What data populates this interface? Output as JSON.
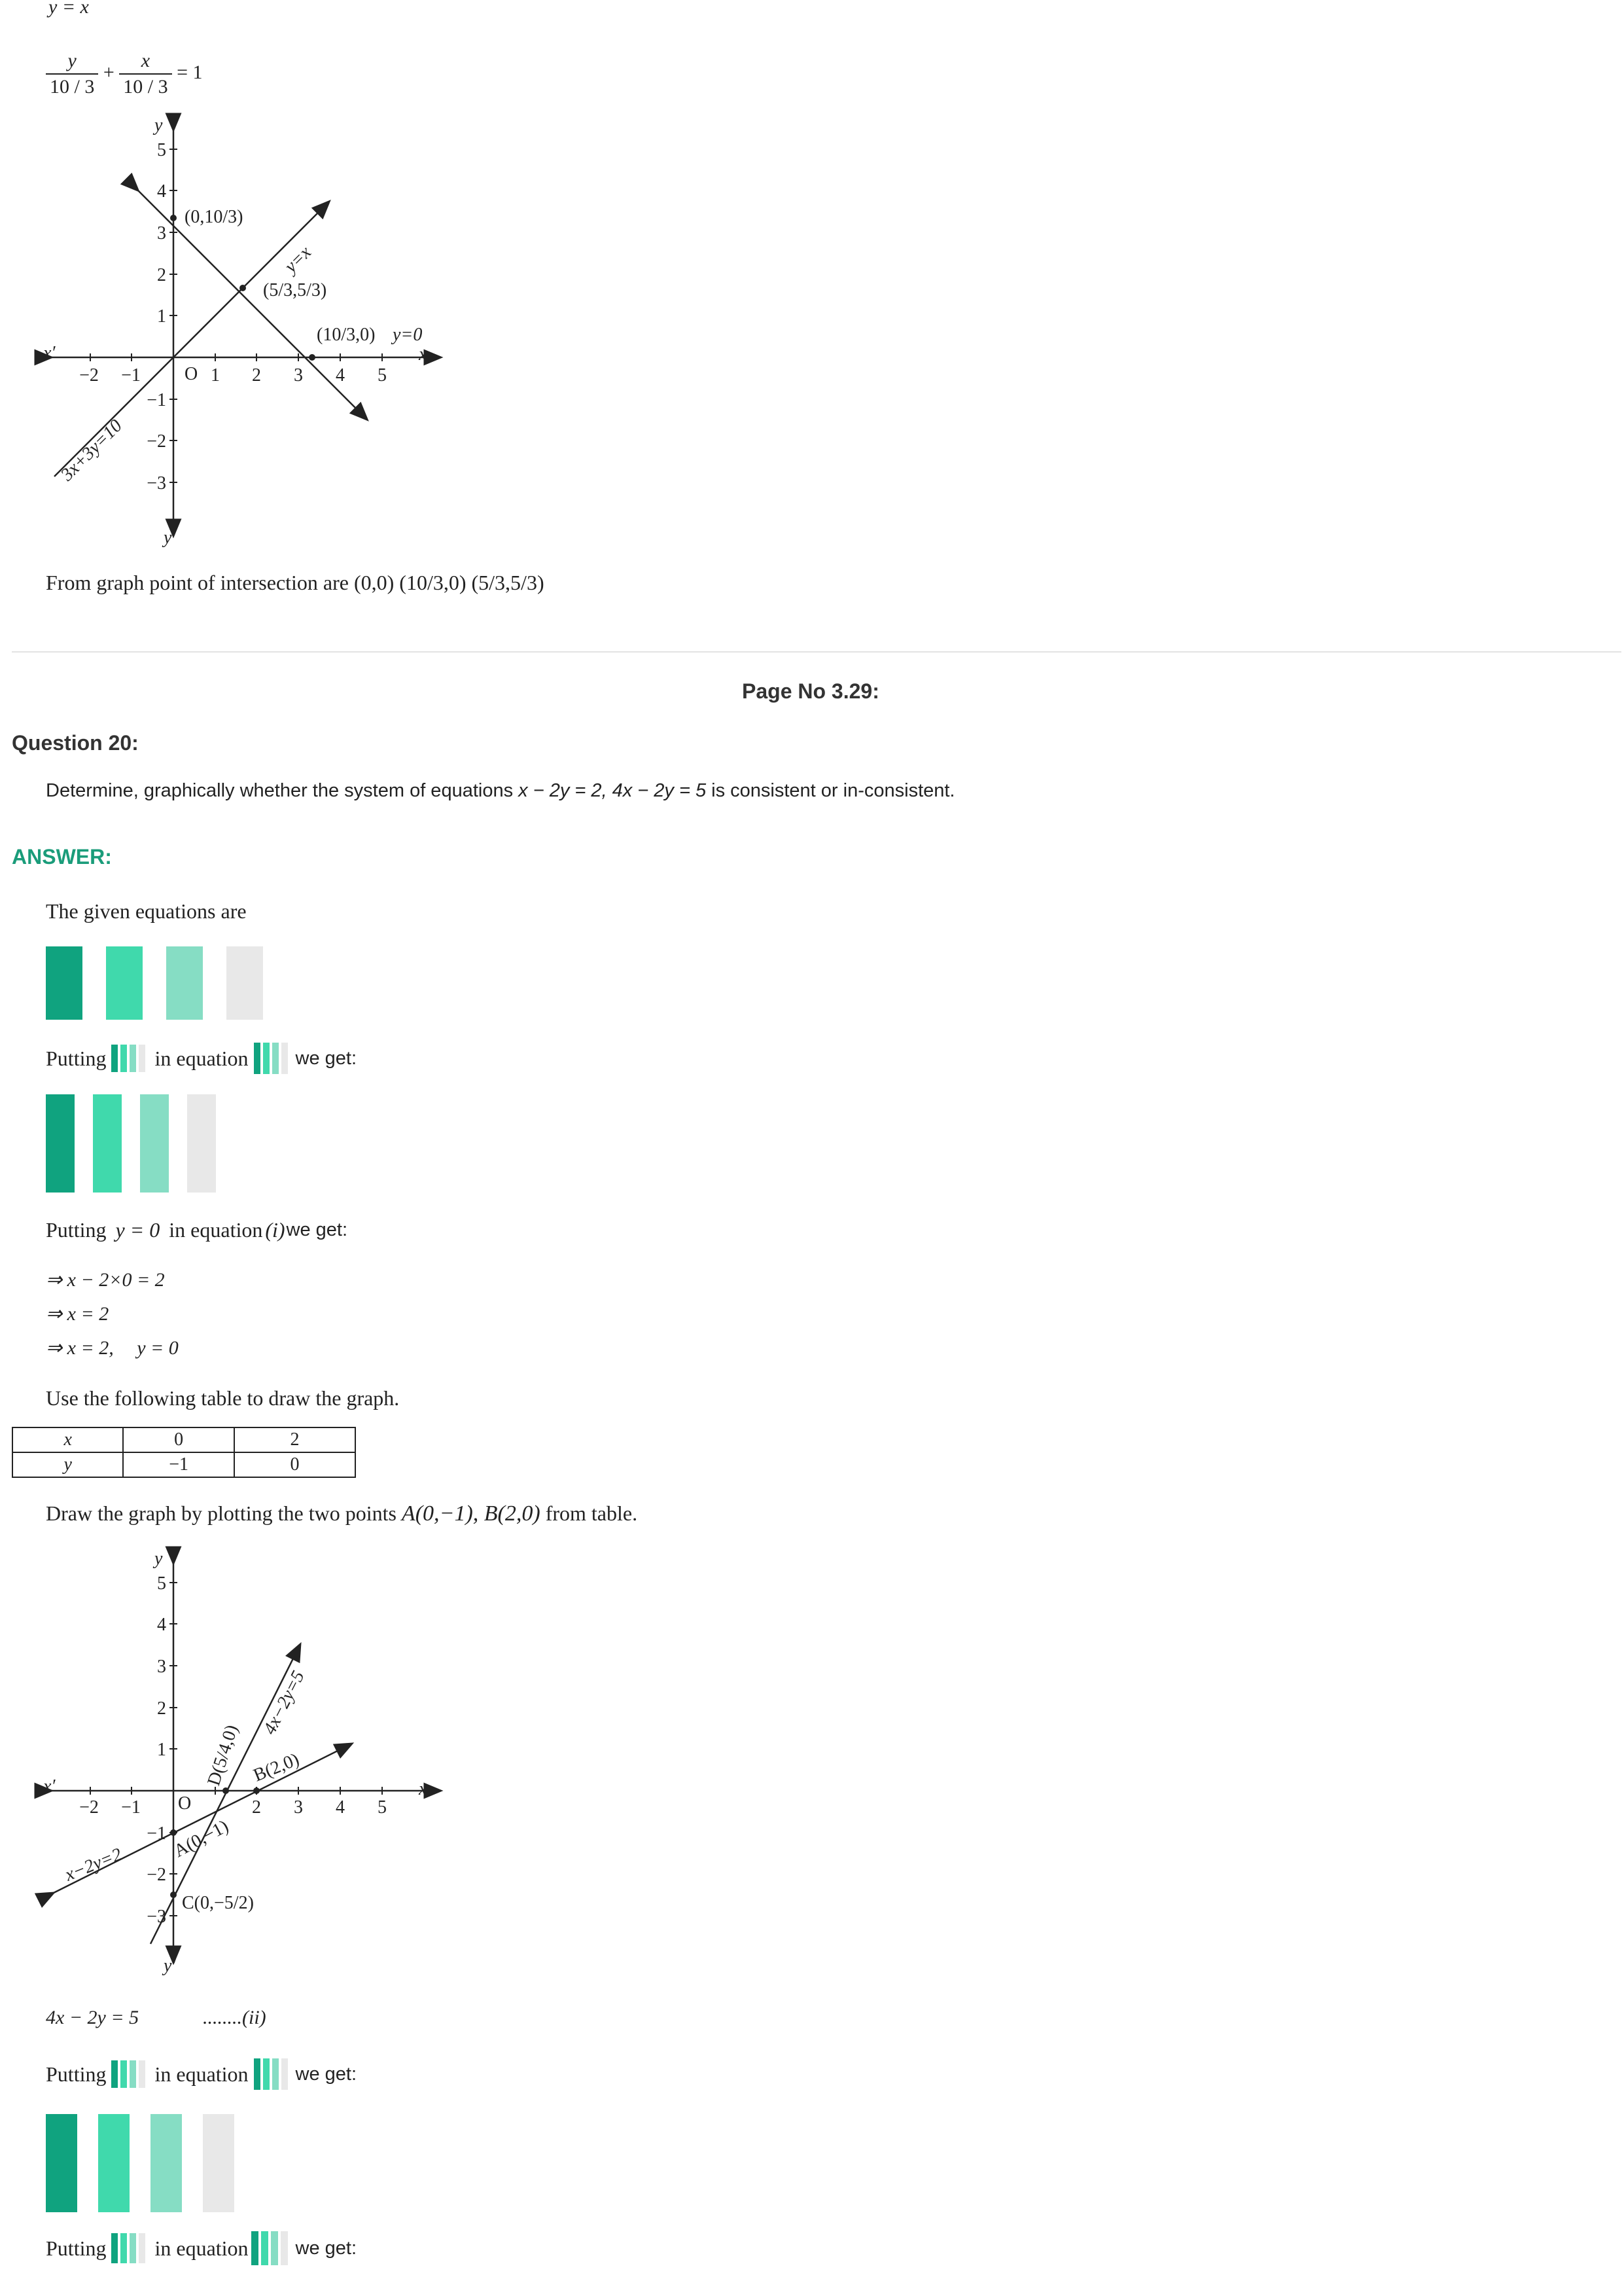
{
  "top": {
    "eq_y_eq_x": "y = x",
    "frac_num_y": "y",
    "frac_den_1": "10 / 3",
    "plus": "+",
    "frac_num_x": "x",
    "frac_den_2": "10 / 3",
    "eq_one": "= 1",
    "conclusion": "From graph point of intersection are (0,0) (10/3,0) (5/3,5/3)"
  },
  "graph1": {
    "axis_x": "x",
    "axis_x_neg": "x′",
    "axis_y": "y",
    "axis_y_neg": "y′",
    "origin": "O",
    "x_ticks": [
      "−2",
      "−1",
      "1",
      "2",
      "3",
      "4",
      "5"
    ],
    "y_ticks": [
      "5",
      "4",
      "3",
      "2",
      "1",
      "−1",
      "−2",
      "−3"
    ],
    "label_p1": "(0,10/3)",
    "label_p2": "(5/3,5/3)",
    "label_p3": "(10/3,0)",
    "label_y0": "y=0",
    "label_yx": "y=x",
    "label_line": "3x+3y=10",
    "colors": {
      "ink": "#222222"
    }
  },
  "page_no": "Page No 3.29:",
  "question": {
    "title": "Question 20:",
    "text_prefix": "Determine, graphically whether the system of equations ",
    "eq1": "x − 2y = 2, 4x − 2y = 5",
    "text_suffix": " is consistent or in-consistent."
  },
  "answer": {
    "label": "ANSWER:",
    "given": "The given equations are",
    "putting": "Putting",
    "in_equation": "in equation",
    "we_get": "we get:",
    "putting2_var": "y = 0",
    "putting2_eq": "(i)",
    "step1": "⇒ x − 2×0 = 2",
    "step2": "⇒ x = 2",
    "step3_x": "⇒ x = 2,",
    "step3_y": "y = 0",
    "use_table": "Use the following table to draw the graph.",
    "table": {
      "rows": [
        [
          "x",
          "0",
          "2"
        ],
        [
          "y",
          "−1",
          "0"
        ]
      ]
    },
    "draw_text_prefix": "Draw the graph by plotting the two points ",
    "draw_points": "A(0,−1), B(2,0)",
    "draw_text_suffix": " from table.",
    "eq2_lhs": "4x − 2y = 5",
    "eq2_tag": "........(ii)",
    "colors": {
      "placeholder_dark": "#10a37f",
      "placeholder_mid": "#40d9ac",
      "placeholder_light": "#86ddc4",
      "placeholder_grey": "#e8e8e8"
    }
  },
  "graph2": {
    "axis_x": "x",
    "axis_x_neg": "x′",
    "axis_y": "y",
    "axis_y_neg": "y′",
    "origin": "O",
    "x_ticks": [
      "−2",
      "−1",
      "2",
      "3",
      "4",
      "5"
    ],
    "y_ticks": [
      "5",
      "4",
      "3",
      "2",
      "1",
      "−1",
      "−2",
      "−3"
    ],
    "label_D": "D(5/4,0)",
    "label_B": "B(2,0)",
    "label_A": "A(0,−1)",
    "label_C": "C(0,−5/2)",
    "label_line1": "x−2y=2",
    "label_line2": "4x−2y=5"
  }
}
